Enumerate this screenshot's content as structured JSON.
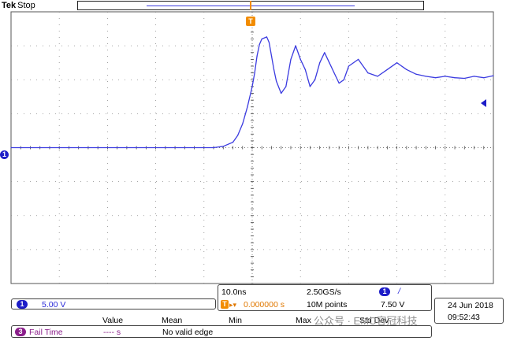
{
  "brand": {
    "name": "Tek",
    "state": "Stop"
  },
  "horizontal": {
    "time_per_div": "10.0ns",
    "sample_rate": "2.50GS/s",
    "trigger_delay": "0.000000 s",
    "record_length": "10M points"
  },
  "trigger": {
    "channel": "1",
    "slope": "/",
    "level": "7.50 V",
    "marker_label": "T",
    "delay_symbol": "▸▾"
  },
  "channel1": {
    "number": "1",
    "volts_per_div": "5.00 V"
  },
  "date": {
    "day": "24 Jun  2018",
    "time": "09:52:43"
  },
  "measurements": {
    "headers": {
      "value": "Value",
      "mean": "Mean",
      "min": "Min",
      "max": "Max",
      "stddev": "Std Dev"
    },
    "rows": [
      {
        "channel": "3",
        "name": "Fail Time",
        "value": "---- s",
        "note": "No valid edge"
      }
    ]
  },
  "watermark": "公众号 · EMC容冠科技",
  "colors": {
    "trace": "#3b3be0",
    "ch1": "#1d1dc8",
    "trigger": "#f28c00",
    "math": "#8a1e8a",
    "grid": "#8a8a8a"
  },
  "chart_data": {
    "type": "line",
    "title": "",
    "xlabel": "",
    "ylabel": "",
    "x_unit": "ns",
    "y_unit": "V",
    "xlim": [
      -50,
      50
    ],
    "ylim": [
      -20,
      20
    ],
    "grid": true,
    "series": [
      {
        "name": "",
        "x": [
          -50,
          -40,
          -30,
          -20,
          -8,
          -6,
          -4,
          -3,
          -2,
          -1,
          0,
          0.5,
          1,
          1.5,
          2,
          3,
          3.5,
          4,
          4.5,
          5,
          6,
          7,
          8,
          9,
          10,
          11,
          12,
          13,
          14,
          15,
          16,
          17,
          18,
          19,
          20,
          22,
          24,
          26,
          28,
          30,
          32,
          34,
          36,
          38,
          40,
          42,
          44,
          46,
          48,
          50
        ],
        "y": [
          0,
          0,
          0,
          0,
          0,
          0.2,
          0.8,
          1.8,
          3.5,
          6,
          9,
          11,
          13.5,
          15.2,
          16,
          16.3,
          15.5,
          13.5,
          11.5,
          9.8,
          8,
          9,
          13,
          15,
          13,
          11.5,
          9,
          10,
          12.5,
          14,
          12.5,
          11,
          9.5,
          10,
          12,
          13,
          11,
          10.5,
          11.5,
          12.5,
          11.5,
          10.8,
          10.5,
          10.3,
          10.5,
          10.3,
          10.2,
          10.5,
          10.3,
          10.6
        ]
      }
    ]
  }
}
